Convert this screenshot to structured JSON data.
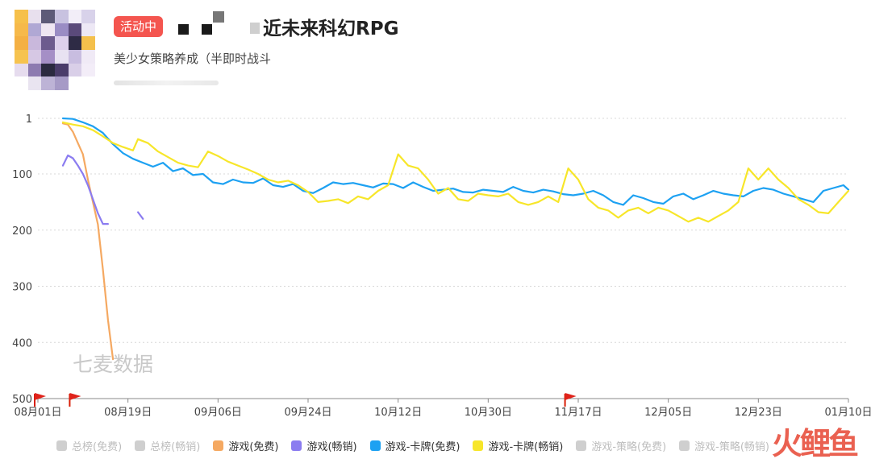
{
  "header": {
    "status_badge": "活动中",
    "app_title": "近未来科幻RPG",
    "genre": "美少女策略养成（半即时战斗"
  },
  "colors": {
    "free_game": "#f5a962",
    "grossing_game": "#8b7cf0",
    "free_card": "#1da1f2",
    "grossing_card": "#f7e62a",
    "disabled": "#cfcfcf",
    "badge": "#f4554f"
  },
  "watermark": "七麦数据",
  "chart_data": {
    "type": "line",
    "y_inverted": true,
    "ylim": [
      500,
      1
    ],
    "yticks": [
      1,
      100,
      200,
      300,
      400,
      500
    ],
    "xlim": [
      "2023-08-01",
      "2024-01-10"
    ],
    "xticks": [
      {
        "date": "2023-08-01",
        "label": "08月01日"
      },
      {
        "date": "2023-08-19",
        "label": "08月19日"
      },
      {
        "date": "2023-09-06",
        "label": "09月06日"
      },
      {
        "date": "2023-09-24",
        "label": "09月24日"
      },
      {
        "date": "2023-10-12",
        "label": "10月12日"
      },
      {
        "date": "2023-10-30",
        "label": "10月30日"
      },
      {
        "date": "2023-11-17",
        "label": "11月17日"
      },
      {
        "date": "2023-12-05",
        "label": "12月05日"
      },
      {
        "date": "2023-12-23",
        "label": "12月23日"
      },
      {
        "date": "2024-01-10",
        "label": "01月10日"
      }
    ],
    "flags": [
      "2023-08-01",
      "2023-08-08",
      "2023-11-15"
    ],
    "series": [
      {
        "name": "游戏(免费)",
        "color": "#f5a962",
        "points": [
          [
            "2023-08-06",
            10
          ],
          [
            "2023-08-07",
            12
          ],
          [
            "2023-08-08",
            25
          ],
          [
            "2023-08-09",
            45
          ],
          [
            "2023-08-10",
            65
          ],
          [
            "2023-08-11",
            110
          ],
          [
            "2023-08-12",
            150
          ],
          [
            "2023-08-13",
            190
          ],
          [
            "2023-08-14",
            270
          ],
          [
            "2023-08-15",
            360
          ],
          [
            "2023-08-16",
            430
          ]
        ]
      },
      {
        "name": "游戏(畅销)",
        "color": "#8b7cf0",
        "points": [
          [
            "2023-08-06",
            85
          ],
          [
            "2023-08-07",
            67
          ],
          [
            "2023-08-08",
            72
          ],
          [
            "2023-08-09",
            85
          ],
          [
            "2023-08-10",
            100
          ],
          [
            "2023-08-11",
            120
          ],
          [
            "2023-08-12",
            145
          ],
          [
            "2023-08-13",
            170
          ],
          [
            "2023-08-14",
            189
          ],
          [
            "2023-08-15",
            189
          ]
        ]
      },
      {
        "name": "游戏(畅销)-2",
        "color": "#8b7cf0",
        "points": [
          [
            "2023-08-21",
            168
          ],
          [
            "2023-08-22",
            180
          ]
        ]
      },
      {
        "name": "游戏-卡牌(免费)",
        "color": "#1da1f2",
        "points": [
          [
            "2023-08-06",
            1
          ],
          [
            "2023-08-08",
            2
          ],
          [
            "2023-08-10",
            8
          ],
          [
            "2023-08-12",
            15
          ],
          [
            "2023-08-14",
            27
          ],
          [
            "2023-08-16",
            47
          ],
          [
            "2023-08-18",
            63
          ],
          [
            "2023-08-20",
            73
          ],
          [
            "2023-08-22",
            80
          ],
          [
            "2023-08-24",
            87
          ],
          [
            "2023-08-26",
            80
          ],
          [
            "2023-08-28",
            95
          ],
          [
            "2023-08-30",
            90
          ],
          [
            "2023-09-01",
            102
          ],
          [
            "2023-09-03",
            100
          ],
          [
            "2023-09-05",
            115
          ],
          [
            "2023-09-07",
            118
          ],
          [
            "2023-09-09",
            110
          ],
          [
            "2023-09-11",
            115
          ],
          [
            "2023-09-13",
            116
          ],
          [
            "2023-09-15",
            108
          ],
          [
            "2023-09-17",
            120
          ],
          [
            "2023-09-19",
            123
          ],
          [
            "2023-09-21",
            118
          ],
          [
            "2023-09-23",
            130
          ],
          [
            "2023-09-25",
            134
          ],
          [
            "2023-09-27",
            125
          ],
          [
            "2023-09-29",
            115
          ],
          [
            "2023-10-01",
            118
          ],
          [
            "2023-10-03",
            116
          ],
          [
            "2023-10-05",
            120
          ],
          [
            "2023-10-07",
            124
          ],
          [
            "2023-10-09",
            117
          ],
          [
            "2023-10-11",
            118
          ],
          [
            "2023-10-13",
            125
          ],
          [
            "2023-10-15",
            115
          ],
          [
            "2023-10-17",
            123
          ],
          [
            "2023-10-19",
            130
          ],
          [
            "2023-10-21",
            128
          ],
          [
            "2023-10-23",
            126
          ],
          [
            "2023-10-25",
            132
          ],
          [
            "2023-10-27",
            133
          ],
          [
            "2023-10-29",
            128
          ],
          [
            "2023-10-31",
            130
          ],
          [
            "2023-11-02",
            132
          ],
          [
            "2023-11-04",
            123
          ],
          [
            "2023-11-06",
            130
          ],
          [
            "2023-11-08",
            133
          ],
          [
            "2023-11-10",
            128
          ],
          [
            "2023-11-12",
            131
          ],
          [
            "2023-11-14",
            136
          ],
          [
            "2023-11-16",
            138
          ],
          [
            "2023-11-18",
            135
          ],
          [
            "2023-11-20",
            130
          ],
          [
            "2023-11-22",
            138
          ],
          [
            "2023-11-24",
            150
          ],
          [
            "2023-11-26",
            155
          ],
          [
            "2023-11-28",
            138
          ],
          [
            "2023-11-30",
            143
          ],
          [
            "2023-12-02",
            150
          ],
          [
            "2023-12-04",
            153
          ],
          [
            "2023-12-06",
            140
          ],
          [
            "2023-12-08",
            135
          ],
          [
            "2023-12-10",
            145
          ],
          [
            "2023-12-12",
            138
          ],
          [
            "2023-12-14",
            130
          ],
          [
            "2023-12-16",
            135
          ],
          [
            "2023-12-18",
            138
          ],
          [
            "2023-12-20",
            140
          ],
          [
            "2023-12-22",
            130
          ],
          [
            "2023-12-24",
            125
          ],
          [
            "2023-12-26",
            128
          ],
          [
            "2023-12-28",
            135
          ],
          [
            "2023-12-30",
            140
          ],
          [
            "2024-01-01",
            145
          ],
          [
            "2024-01-03",
            150
          ],
          [
            "2024-01-05",
            130
          ],
          [
            "2024-01-07",
            125
          ],
          [
            "2024-01-09",
            120
          ],
          [
            "2024-01-10",
            128
          ]
        ]
      },
      {
        "name": "游戏-卡牌(畅销)",
        "color": "#f7e62a",
        "points": [
          [
            "2023-08-06",
            8
          ],
          [
            "2023-08-08",
            12
          ],
          [
            "2023-08-10",
            15
          ],
          [
            "2023-08-12",
            22
          ],
          [
            "2023-08-14",
            33
          ],
          [
            "2023-08-16",
            45
          ],
          [
            "2023-08-18",
            52
          ],
          [
            "2023-08-20",
            58
          ],
          [
            "2023-08-21",
            38
          ],
          [
            "2023-08-23",
            45
          ],
          [
            "2023-08-25",
            60
          ],
          [
            "2023-08-27",
            70
          ],
          [
            "2023-08-29",
            80
          ],
          [
            "2023-08-31",
            85
          ],
          [
            "2023-09-02",
            88
          ],
          [
            "2023-09-04",
            60
          ],
          [
            "2023-09-06",
            68
          ],
          [
            "2023-09-08",
            78
          ],
          [
            "2023-09-10",
            85
          ],
          [
            "2023-09-12",
            92
          ],
          [
            "2023-09-14",
            100
          ],
          [
            "2023-09-16",
            110
          ],
          [
            "2023-09-18",
            115
          ],
          [
            "2023-09-20",
            112
          ],
          [
            "2023-09-22",
            120
          ],
          [
            "2023-09-24",
            132
          ],
          [
            "2023-09-26",
            150
          ],
          [
            "2023-09-28",
            148
          ],
          [
            "2023-09-30",
            145
          ],
          [
            "2023-10-02",
            152
          ],
          [
            "2023-10-04",
            140
          ],
          [
            "2023-10-06",
            145
          ],
          [
            "2023-10-08",
            130
          ],
          [
            "2023-10-10",
            120
          ],
          [
            "2023-10-12",
            65
          ],
          [
            "2023-10-14",
            85
          ],
          [
            "2023-10-16",
            90
          ],
          [
            "2023-10-18",
            110
          ],
          [
            "2023-10-20",
            135
          ],
          [
            "2023-10-22",
            125
          ],
          [
            "2023-10-24",
            145
          ],
          [
            "2023-10-26",
            148
          ],
          [
            "2023-10-28",
            135
          ],
          [
            "2023-10-30",
            138
          ],
          [
            "2023-11-01",
            140
          ],
          [
            "2023-11-03",
            135
          ],
          [
            "2023-11-05",
            150
          ],
          [
            "2023-11-07",
            155
          ],
          [
            "2023-11-09",
            150
          ],
          [
            "2023-11-11",
            140
          ],
          [
            "2023-11-13",
            150
          ],
          [
            "2023-11-15",
            90
          ],
          [
            "2023-11-17",
            110
          ],
          [
            "2023-11-19",
            145
          ],
          [
            "2023-11-21",
            160
          ],
          [
            "2023-11-23",
            165
          ],
          [
            "2023-11-25",
            178
          ],
          [
            "2023-11-27",
            165
          ],
          [
            "2023-11-29",
            160
          ],
          [
            "2023-12-01",
            170
          ],
          [
            "2023-12-03",
            160
          ],
          [
            "2023-12-05",
            165
          ],
          [
            "2023-12-07",
            175
          ],
          [
            "2023-12-09",
            185
          ],
          [
            "2023-12-11",
            178
          ],
          [
            "2023-12-13",
            185
          ],
          [
            "2023-12-15",
            175
          ],
          [
            "2023-12-17",
            165
          ],
          [
            "2023-12-19",
            150
          ],
          [
            "2023-12-21",
            90
          ],
          [
            "2023-12-23",
            110
          ],
          [
            "2023-12-25",
            90
          ],
          [
            "2023-12-27",
            110
          ],
          [
            "2023-12-29",
            125
          ],
          [
            "2023-12-31",
            145
          ],
          [
            "2024-01-02",
            155
          ],
          [
            "2024-01-04",
            168
          ],
          [
            "2024-01-06",
            170
          ],
          [
            "2024-01-08",
            150
          ],
          [
            "2024-01-10",
            130
          ]
        ]
      }
    ]
  },
  "legend": [
    {
      "label": "总榜(免费)",
      "active": false
    },
    {
      "label": "总榜(畅销)",
      "active": false
    },
    {
      "label": "游戏(免费)",
      "active": true,
      "color": "#f5a962"
    },
    {
      "label": "游戏(畅销)",
      "active": true,
      "color": "#8b7cf0"
    },
    {
      "label": "游戏-卡牌(免费)",
      "active": true,
      "color": "#1da1f2"
    },
    {
      "label": "游戏-卡牌(畅销)",
      "active": true,
      "color": "#f7e62a"
    },
    {
      "label": "游戏-策略(免费)",
      "active": false
    },
    {
      "label": "游戏-策略(畅销)",
      "active": false
    }
  ]
}
